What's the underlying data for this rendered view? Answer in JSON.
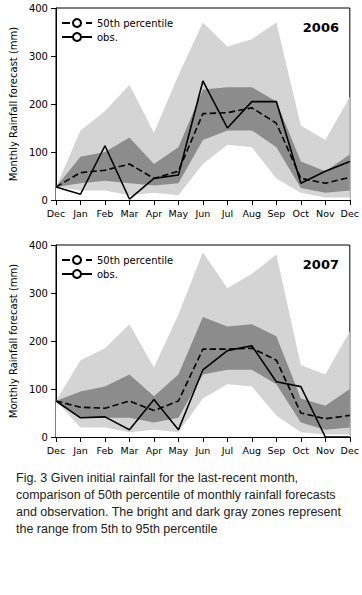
{
  "chart_data": [
    {
      "type": "line",
      "title": "2006",
      "y_label": "Monthly Rainfall forecast (mm)",
      "categories": [
        "Dec",
        "Jan",
        "Feb",
        "Mar",
        "Apr",
        "May",
        "Jun",
        "Jul",
        "Aug",
        "Sep",
        "Oct",
        "Nov",
        "Dec"
      ],
      "ylim": [
        0,
        400
      ],
      "yticks": [
        0,
        100,
        200,
        300,
        400
      ],
      "grid": false,
      "legend": "upper left",
      "bands": [
        {
          "color": "#d4d4d4",
          "lower": [
            27,
            20,
            20,
            10,
            15,
            10,
            75,
            115,
            110,
            45,
            15,
            5,
            5
          ],
          "upper": [
            27,
            145,
            185,
            240,
            140,
            260,
            370,
            320,
            335,
            370,
            155,
            125,
            215
          ]
        },
        {
          "color": "#8c8c8c",
          "lower": [
            27,
            35,
            40,
            35,
            30,
            35,
            125,
            145,
            145,
            110,
            25,
            15,
            20
          ],
          "upper": [
            27,
            90,
            100,
            130,
            75,
            110,
            230,
            235,
            235,
            205,
            80,
            60,
            95
          ]
        }
      ],
      "series": [
        {
          "name": "50th percentile",
          "color": "#000000",
          "line_style": "dashed",
          "values": [
            27,
            57,
            62,
            75,
            45,
            60,
            180,
            182,
            192,
            160,
            45,
            35,
            47
          ]
        },
        {
          "name": "obs.",
          "color": "#000000",
          "line_style": "solid",
          "values": [
            27,
            12,
            113,
            2,
            45,
            52,
            248,
            150,
            205,
            205,
            35,
            60,
            80
          ]
        }
      ]
    },
    {
      "type": "line",
      "title": "2007",
      "y_label": "Monthly Rainfall forecast (mm)",
      "categories": [
        "Dec",
        "Jan",
        "Feb",
        "Mar",
        "Apr",
        "May",
        "Jun",
        "Jul",
        "Aug",
        "Sep",
        "Oct",
        "Nov",
        "Dec"
      ],
      "ylim": [
        0,
        400
      ],
      "yticks": [
        0,
        100,
        200,
        300,
        400
      ],
      "grid": false,
      "legend": "upper left",
      "bands": [
        {
          "color": "#d4d4d4",
          "lower": [
            75,
            20,
            20,
            10,
            15,
            10,
            80,
            110,
            105,
            45,
            10,
            5,
            5
          ],
          "upper": [
            75,
            160,
            185,
            235,
            145,
            255,
            385,
            310,
            340,
            380,
            150,
            130,
            220
          ]
        },
        {
          "color": "#8c8c8c",
          "lower": [
            75,
            40,
            40,
            40,
            30,
            40,
            130,
            140,
            140,
            110,
            30,
            15,
            20
          ],
          "upper": [
            75,
            95,
            105,
            130,
            85,
            130,
            250,
            230,
            235,
            210,
            80,
            65,
            100
          ]
        }
      ],
      "series": [
        {
          "name": "50th percentile",
          "color": "#000000",
          "line_style": "dashed",
          "values": [
            75,
            62,
            60,
            75,
            55,
            75,
            183,
            183,
            185,
            160,
            50,
            38,
            45
          ]
        },
        {
          "name": "obs.",
          "color": "#000000",
          "line_style": "solid",
          "values": [
            75,
            40,
            42,
            15,
            78,
            15,
            140,
            180,
            190,
            115,
            105,
            0,
            0
          ]
        }
      ]
    }
  ],
  "caption": "Fig. 3 Given initial rainfall for the last-recent month, comparison of 50th percentile of monthly rainfall forecasts and observation. The bright and dark gray zones represent the range from 5th to 95th percentile"
}
